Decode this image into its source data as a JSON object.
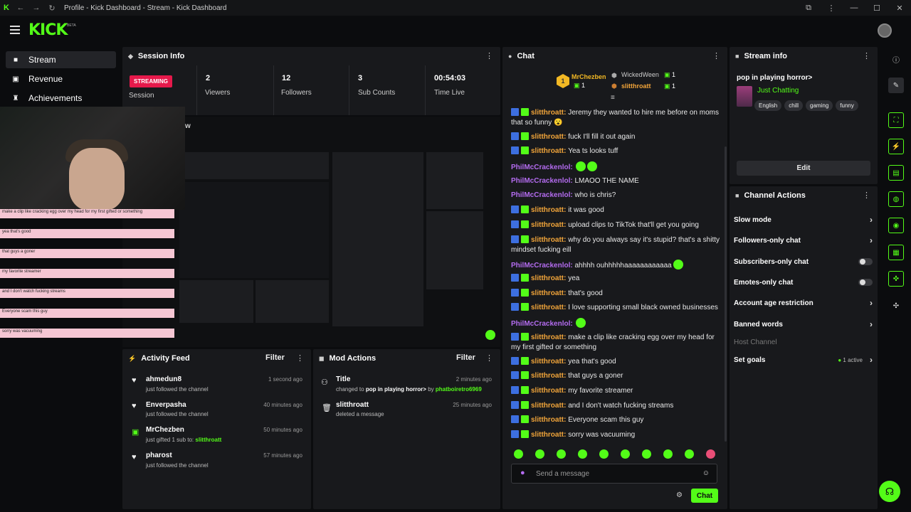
{
  "window": {
    "title": "Profile - Kick Dashboard - Stream - Kick Dashboard"
  },
  "brand": {
    "logo": "KICK",
    "beta": "BETA",
    "accent": "#53fc18"
  },
  "nav": [
    {
      "label": "Stream",
      "icon": "video-icon",
      "active": true
    },
    {
      "label": "Revenue",
      "icon": "revenue-icon"
    },
    {
      "label": "Achievements",
      "icon": "trophy-icon"
    }
  ],
  "session": {
    "title": "Session Info",
    "status": "STREAMING",
    "status_label": "Session",
    "stats": [
      {
        "value": "2",
        "label": "Viewers"
      },
      {
        "value": "12",
        "label": "Followers"
      },
      {
        "value": "3",
        "label": "Sub Counts"
      },
      {
        "value": "00:54:03",
        "label": "Time Live"
      }
    ]
  },
  "preview": {
    "label": "w"
  },
  "overlay_chat": [
    "make a clip like cracking egg over my head for my first gifted or something",
    "yea that's good",
    "that guys a goner",
    "my favorite streamer",
    "and I don't watch fucking streams",
    "Everyone scam this guy",
    "sorry was vacuuming"
  ],
  "activity": {
    "title": "Activity Feed",
    "filter": "Filter",
    "items": [
      {
        "name": "ahmedun8",
        "sub": "just followed the channel",
        "time": "1 second ago"
      },
      {
        "name": "Enverpasha",
        "sub": "just followed the channel",
        "time": "40 minutes ago"
      },
      {
        "name": "MrChezben",
        "sub": "just gifted 1 sub to:",
        "target": "slitthroatt",
        "time": "50 minutes ago"
      },
      {
        "name": "pharost",
        "sub": "just followed the channel",
        "time": "57 minutes ago"
      }
    ]
  },
  "mod_actions": {
    "title": "Mod Actions",
    "filter": "Filter",
    "items": [
      {
        "name": "Title",
        "sub_a": "changed to",
        "sub_b": "pop in playing horror>",
        "sub_c": "by",
        "sub_d": "phatboiretro6969",
        "time": "2 minutes ago"
      },
      {
        "name": "slitthroatt",
        "sub_a": "deleted a message",
        "time": "25 minutes ago"
      }
    ]
  },
  "chat": {
    "title": "Chat",
    "gifters": {
      "top": {
        "name": "MrChezben",
        "count": "1"
      },
      "second": {
        "name": "WickedWeen",
        "count": "1"
      },
      "third": {
        "name": "slitthroatt",
        "count": "1"
      }
    },
    "messages": [
      {
        "user": "slitthroatt",
        "text": "Jeremy they wanted to hire me before on moms that so funny 😮",
        "color": "orange",
        "badges": true
      },
      {
        "user": "slitthroatt",
        "text": "fuck I'll fill it out again",
        "color": "orange",
        "badges": true
      },
      {
        "user": "slitthroatt",
        "text": "Yea ts looks tuff",
        "color": "orange",
        "badges": true
      },
      {
        "user": "PhilMcCrackenlol",
        "text": "",
        "color": "purple",
        "emotes": 2
      },
      {
        "user": "PhilMcCrackenlol",
        "text": "LMAOO THE NAME",
        "color": "purple"
      },
      {
        "user": "PhilMcCrackenlol",
        "text": "who is chris?",
        "color": "purple"
      },
      {
        "user": "slitthroatt",
        "text": "it was good",
        "color": "orange",
        "badges": true
      },
      {
        "user": "slitthroatt",
        "text": "upload clips to TikTok that'll get you going",
        "color": "orange",
        "badges": true
      },
      {
        "user": "slitthroatt",
        "text": "why do you always say it's stupid? that's a shitty mindset fucking eill",
        "color": "orange",
        "badges": true
      },
      {
        "user": "PhilMcCrackenlol",
        "text": "ahhhh ouhhhhhaaaaaaaaaaaa",
        "color": "purple",
        "emotes": 1
      },
      {
        "user": "slitthroatt",
        "text": "yea",
        "color": "orange",
        "badges": true
      },
      {
        "user": "slitthroatt",
        "text": "that's good",
        "color": "orange",
        "badges": true
      },
      {
        "user": "slitthroatt",
        "text": "I love supporting small black owned businesses",
        "color": "orange",
        "badges": true
      },
      {
        "user": "PhilMcCrackenlol",
        "text": "",
        "color": "purple",
        "emotes": 1
      },
      {
        "user": "slitthroatt",
        "text": "make a clip like cracking egg over my head for my first gifted or something",
        "color": "orange",
        "badges": true
      },
      {
        "user": "slitthroatt",
        "text": "yea that's good",
        "color": "orange",
        "badges": true
      },
      {
        "user": "slitthroatt",
        "text": "that guys a goner",
        "color": "orange",
        "badges": true
      },
      {
        "user": "slitthroatt",
        "text": "my favorite streamer",
        "color": "orange",
        "badges": true
      },
      {
        "user": "slitthroatt",
        "text": "and I don't watch fucking streams",
        "color": "orange",
        "badges": true
      },
      {
        "user": "slitthroatt",
        "text": "Everyone scam this guy",
        "color": "orange",
        "badges": true
      },
      {
        "user": "slitthroatt",
        "text": "sorry was vacuuming",
        "color": "orange",
        "badges": true
      }
    ],
    "input_placeholder": "Send a message",
    "send_label": "Chat"
  },
  "stream_info": {
    "title": "Stream info",
    "stream_title": "pop in playing horror>",
    "category": "Just Chatting",
    "tags": [
      "English",
      "chill",
      "gaming",
      "funny"
    ],
    "edit_label": "Edit"
  },
  "channel_actions": {
    "title": "Channel Actions",
    "rows": [
      {
        "label": "Slow mode",
        "kind": "chevron"
      },
      {
        "label": "Followers-only chat",
        "kind": "chevron"
      },
      {
        "label": "Subscribers-only chat",
        "kind": "toggle"
      },
      {
        "label": "Emotes-only chat",
        "kind": "toggle"
      },
      {
        "label": "Account age restriction",
        "kind": "chevron"
      },
      {
        "label": "Banned words",
        "kind": "chevron"
      }
    ],
    "host_label": "Host Channel",
    "goals_label": "Set goals",
    "goals_active": "1 active"
  }
}
